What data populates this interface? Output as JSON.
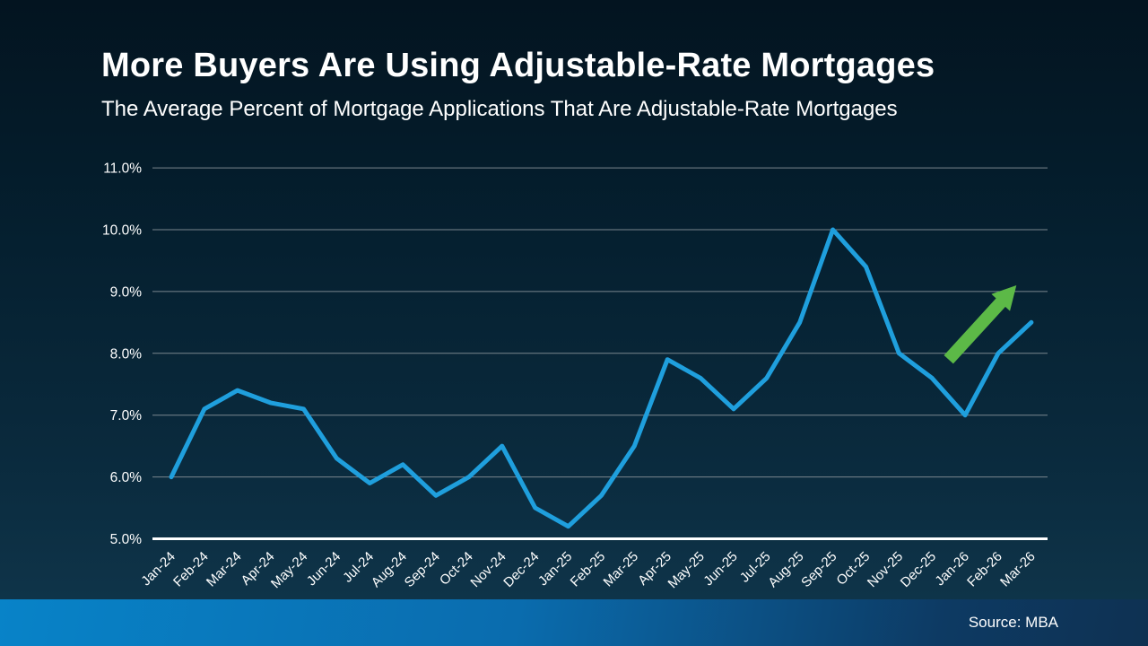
{
  "header": {
    "title": "More Buyers Are Using Adjustable-Rate Mortgages",
    "subtitle": "The Average Percent of Mortgage Applications That Are Adjustable-Rate Mortgages"
  },
  "chart_data": {
    "type": "line",
    "title": "More Buyers Are Using Adjustable-Rate Mortgages",
    "subtitle": "The Average Percent of Mortgage Applications That Are Adjustable-Rate Mortgages",
    "categories": [
      "Jan-24",
      "Feb-24",
      "Mar-24",
      "Apr-24",
      "May-24",
      "Jun-24",
      "Jul-24",
      "Aug-24",
      "Sep-24",
      "Oct-24",
      "Nov-24",
      "Dec-24",
      "Jan-25",
      "Feb-25",
      "Mar-25",
      "Apr-25",
      "May-25",
      "Jun-25",
      "Jul-25",
      "Aug-25",
      "Sep-25",
      "Oct-25",
      "Nov-25",
      "Dec-25",
      "Jan-26",
      "Feb-26",
      "Mar-26"
    ],
    "values": [
      6.0,
      7.1,
      7.4,
      7.2,
      7.1,
      6.3,
      5.9,
      6.2,
      5.7,
      6.0,
      6.5,
      5.5,
      5.2,
      5.7,
      6.5,
      7.9,
      7.6,
      7.1,
      7.6,
      8.5,
      10.0,
      9.4,
      8.0,
      7.6,
      7.0,
      8.0,
      8.5
    ],
    "ylim": [
      5.0,
      11.0
    ],
    "y_tick_values": [
      11,
      10,
      9,
      8,
      7,
      6,
      5
    ],
    "y_tick_labels": [
      "11.0%",
      "10.0%",
      "9.0%",
      "8.0%",
      "7.0%",
      "6.0%",
      "5.0%"
    ],
    "grid": true,
    "legend": false,
    "line_color": "#1f9fdd",
    "gridline_color": "#7a868e",
    "baseline_color": "#ffffff",
    "tick_label_color": "#ffffff",
    "annotation_arrow": {
      "color": "#5cb947",
      "from": {
        "month_index": 23.5,
        "value": 7.9
      },
      "to": {
        "month_index": 25.55,
        "value": 9.1
      }
    }
  },
  "footer": {
    "source_label": "Source: MBA"
  }
}
